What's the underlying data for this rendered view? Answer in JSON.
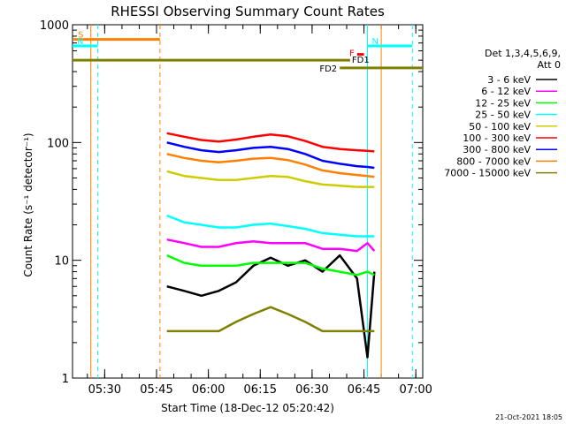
{
  "chart_data": {
    "type": "line",
    "title": "RHESSI Observing Summary Count Rates",
    "xlabel": "Start Time (18-Dec-12 05:20:42)",
    "ylabel": "Count Rate (s⁻¹ detector⁻¹)",
    "xlim": [
      "05:20:42",
      "07:02:00"
    ],
    "ylim": [
      1,
      1000
    ],
    "yscale": "log",
    "x_ticks": [
      "05:30",
      "05:45",
      "06:00",
      "06:15",
      "06:30",
      "06:45",
      "07:00"
    ],
    "y_ticks": [
      "1",
      "10",
      "100",
      "1000"
    ],
    "legend": {
      "placement": "right",
      "header": "Det 1,3,4,5,6,9,",
      "attenuator": "Att 0"
    },
    "series": [
      {
        "name": "3 - 6 keV",
        "color": "#000000",
        "x": [
          "05:48",
          "05:53",
          "05:58",
          "06:03",
          "06:08",
          "06:13",
          "06:18",
          "06:23",
          "06:28",
          "06:33",
          "06:38",
          "06:43",
          "06:46",
          "06:48"
        ],
        "values": [
          6,
          5.5,
          5,
          5.5,
          6.5,
          9,
          10.5,
          9,
          10,
          8,
          11,
          7,
          1.5,
          8
        ]
      },
      {
        "name": "6 - 12 keV",
        "color": "#ff00ff",
        "x": [
          "05:48",
          "05:53",
          "05:58",
          "06:03",
          "06:08",
          "06:13",
          "06:18",
          "06:23",
          "06:28",
          "06:33",
          "06:38",
          "06:43",
          "06:46",
          "06:48"
        ],
        "values": [
          15,
          14,
          13,
          13,
          14,
          14.5,
          14,
          14,
          14,
          12.5,
          12.5,
          12,
          14,
          12
        ]
      },
      {
        "name": "12 - 25 keV",
        "color": "#00ff00",
        "x": [
          "05:48",
          "05:53",
          "05:58",
          "06:03",
          "06:08",
          "06:13",
          "06:18",
          "06:23",
          "06:28",
          "06:33",
          "06:38",
          "06:43",
          "06:46",
          "06:48"
        ],
        "values": [
          11,
          9.5,
          9,
          9,
          9,
          9.5,
          9.5,
          9.5,
          9.5,
          8.5,
          8,
          7.5,
          8,
          7.5
        ]
      },
      {
        "name": "25 - 50 keV",
        "color": "#00ffff",
        "x": [
          "05:48",
          "05:53",
          "05:58",
          "06:03",
          "06:08",
          "06:13",
          "06:18",
          "06:23",
          "06:28",
          "06:33",
          "06:38",
          "06:43",
          "06:46",
          "06:48"
        ],
        "values": [
          24,
          21,
          20,
          19,
          19,
          20,
          20.5,
          19.5,
          18.5,
          17,
          16.5,
          16,
          16,
          16
        ]
      },
      {
        "name": "50 - 100 keV",
        "color": "#cccc00",
        "x": [
          "05:48",
          "05:53",
          "05:58",
          "06:03",
          "06:08",
          "06:13",
          "06:18",
          "06:23",
          "06:28",
          "06:33",
          "06:38",
          "06:43",
          "06:46",
          "06:48"
        ],
        "values": [
          57,
          52,
          50,
          48,
          48,
          50,
          52,
          51,
          47,
          44,
          43,
          42,
          42,
          42
        ]
      },
      {
        "name": "100 - 300 keV",
        "color": "#ff0000",
        "x": [
          "05:48",
          "05:53",
          "05:58",
          "06:03",
          "06:08",
          "06:13",
          "06:18",
          "06:23",
          "06:28",
          "06:33",
          "06:38",
          "06:43",
          "06:46",
          "06:48"
        ],
        "values": [
          120,
          112,
          105,
          102,
          106,
          112,
          117,
          113,
          103,
          92,
          88,
          86,
          85,
          84
        ]
      },
      {
        "name": "300 - 800 keV",
        "color": "#0000ff",
        "x": [
          "05:48",
          "05:53",
          "05:58",
          "06:03",
          "06:08",
          "06:13",
          "06:18",
          "06:23",
          "06:28",
          "06:33",
          "06:38",
          "06:43",
          "06:46",
          "06:48"
        ],
        "values": [
          100,
          92,
          86,
          83,
          86,
          90,
          92,
          88,
          80,
          70,
          66,
          63,
          62,
          61
        ]
      },
      {
        "name": "800 - 7000 keV",
        "color": "#ff8000",
        "x": [
          "05:48",
          "05:53",
          "05:58",
          "06:03",
          "06:08",
          "06:13",
          "06:18",
          "06:23",
          "06:28",
          "06:33",
          "06:38",
          "06:43",
          "06:46",
          "06:48"
        ],
        "values": [
          80,
          74,
          70,
          68,
          70,
          73,
          74,
          71,
          65,
          58,
          55,
          53,
          52,
          51
        ]
      },
      {
        "name": "7000 - 15000 keV",
        "color": "#808000",
        "x": [
          "05:48",
          "05:53",
          "05:58",
          "06:03",
          "06:08",
          "06:13",
          "06:18",
          "06:23",
          "06:28",
          "06:33",
          "06:38",
          "06:43",
          "06:46",
          "06:48"
        ],
        "values": [
          2.5,
          2.5,
          2.5,
          2.5,
          3,
          3.5,
          4,
          3.5,
          3,
          2.5,
          2.5,
          2.5,
          2.5,
          2.5
        ]
      }
    ],
    "flags": [
      {
        "label": "S",
        "color": "#ff8000",
        "x_start": "05:21",
        "x_end": "05:46",
        "value": 750
      },
      {
        "label": "N",
        "color": "#00ffff",
        "x_start": "05:20:42",
        "x_end": "05:28",
        "value": 660
      },
      {
        "label": "N",
        "color": "#00ffff",
        "x_start": "06:46",
        "x_end": "06:59",
        "value": 660
      },
      {
        "label": "F",
        "color": "#ff0000",
        "x_start": "06:43",
        "x_end": "06:45",
        "value": 560
      },
      {
        "label": "FD1",
        "color": "#808000",
        "x_start": "05:20:42",
        "x_end": "06:41",
        "value": 500
      },
      {
        "label": "FD2",
        "color": "#808000",
        "x_start": "06:38",
        "x_end": "07:02",
        "value": 430
      }
    ],
    "vertical_lines": [
      {
        "x": "05:26",
        "color": "#ff8000",
        "style": "solid"
      },
      {
        "x": "05:28",
        "color": "#00ffff",
        "style": "dashed"
      },
      {
        "x": "05:46",
        "color": "#ff8000",
        "style": "dashed"
      },
      {
        "x": "06:46",
        "color": "#00ffff",
        "style": "solid"
      },
      {
        "x": "06:50",
        "color": "#ff8000",
        "style": "solid"
      },
      {
        "x": "06:59",
        "color": "#00ffff",
        "style": "dashed"
      }
    ],
    "footer": "21-Oct-2021 18:05"
  }
}
